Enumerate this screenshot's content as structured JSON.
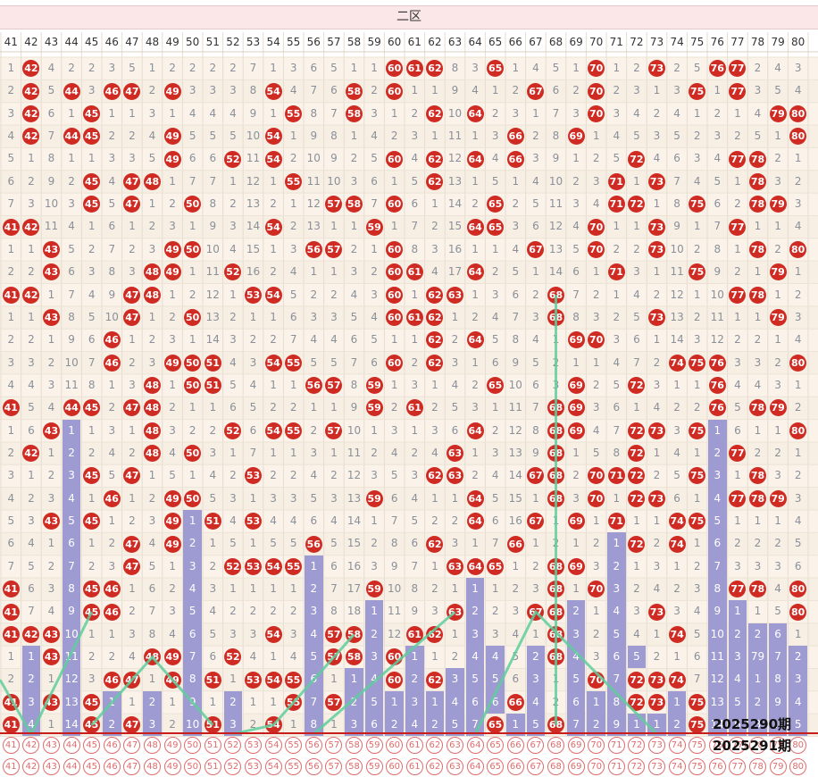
{
  "zone_label": "二区",
  "columns": [
    "41",
    "42",
    "43",
    "44",
    "45",
    "46",
    "47",
    "48",
    "49",
    "50",
    "51",
    "52",
    "53",
    "54",
    "55",
    "56",
    "57",
    "58",
    "59",
    "60",
    "61",
    "62",
    "63",
    "64",
    "65",
    "66",
    "67",
    "68",
    "69",
    "70",
    "71",
    "72",
    "73",
    "74",
    "75",
    "76",
    "77",
    "78",
    "79",
    "80"
  ],
  "rows": [
    "1,42,4,2,2,3,5,1,2,2,2,2,7,1,3,6,5,1,1,60,61,62,8,3,65,1,4,5,1,70,1,2,73,2,5,76,77,2,4,3",
    "2,42,5,44,3,46,47,2,49,3,3,3,8,54,4,7,6,58,2,60,1,1,9,4,1,2,67,6,2,70,2,3,1,3,75,1,77,3,5,4",
    "3,42,6,1,45,1,1,3,1,4,4,4,9,1,55,8,7,58,3,1,2,62,10,64,2,3,1,7,3,70,3,4,2,4,1,2,1,4,79,80",
    "4,42,7,44,45,2,2,4,49,5,5,5,10,54,1,9,8,1,4,2,3,1,11,1,3,66,2,8,69,1,4,5,3,5,2,3,2,5,1,80",
    "5,1,8,1,1,3,3,5,49,6,6,52,11,54,2,10,9,2,5,60,4,62,12,64,4,66,3,9,1,2,5,72,4,6,3,4,77,78,2,1",
    "6,2,9,2,45,4,47,48,1,7,7,1,12,1,55,11,10,3,6,1,5,62,13,1,5,1,4,10,2,3,71,1,73,7,4,5,1,78,3,2",
    "7,3,10,3,45,5,47,1,2,50,8,2,13,2,1,12,57,58,7,60,6,1,14,2,65,2,5,11,3,4,71,72,1,8,75,6,2,78,79,3",
    "41,42,11,4,1,6,1,2,3,1,9,3,14,54,2,13,1,1,59,1,7,2,15,64,65,3,6,12,4,70,1,1,73,9,1,7,77,1,1,4",
    "1,1,43,5,2,7,2,3,49,50,10,4,15,1,3,56,57,2,1,60,8,3,16,1,1,4,67,13,5,70,2,2,73,10,2,8,1,78,2,80",
    "2,2,43,6,3,8,3,48,49,1,11,52,16,2,4,1,1,3,2,60,61,4,17,64,2,5,1,14,6,1,71,3,1,11,75,9,2,1,79,1",
    "41,42,1,7,4,9,47,48,1,2,12,1,53,54,5,2,2,4,3,60,1,62,63,1,3,6,2,68,7,2,1,4,2,12,1,10,77,78,1,2",
    "1,1,43,8,5,10,47,1,2,50,13,2,1,1,6,3,3,5,4,60,61,62,1,2,4,7,3,68,8,3,2,5,73,13,2,11,1,1,79,3",
    "2,2,1,9,6,46,1,2,3,1,14,3,2,2,7,4,4,6,5,1,1,62,2,64,5,8,4,1,69,70,3,6,1,14,3,12,2,2,1,4",
    "3,3,2,10,7,46,2,3,49,50,51,4,3,54,55,5,5,7,6,60,2,62,3,1,6,9,5,2,1,1,4,7,2,74,75,76,3,3,2,80",
    "4,4,3,11,8,1,3,48,1,50,51,5,4,1,1,56,57,8,59,1,3,1,4,2,65,10,6,3,69,2,5,72,3,1,1,76,4,4,3,1",
    "41,5,4,44,45,2,47,48,2,1,1,6,5,2,2,1,1,9,59,2,61,2,5,3,1,11,7,68,69,3,6,1,4,2,2,76,5,78,79,2",
    "1,6,43,1,1,3,1,48,3,2,2,52,6,54,55,2,57,10,1,3,1,3,6,64,2,12,8,68,69,4,7,72,73,3,75,1,6,1,1,80",
    "2,42,1,2,2,4,2,48,4,50,3,1,7,1,1,3,1,11,2,4,2,4,63,1,3,13,9,68,1,5,8,72,1,4,1,2,77,2,2,1",
    "3,1,2,3,45,5,47,1,5,1,4,2,53,2,2,4,2,12,3,5,3,62,63,2,4,14,67,68,2,70,71,72,2,5,75,3,1,78,3,2",
    "4,2,3,4,1,46,1,2,49,50,5,3,1,3,3,5,3,13,59,6,4,1,1,64,5,15,1,68,3,70,1,72,73,6,1,4,77,78,79,3",
    "5,3,43,5,45,1,2,3,49,1,51,4,53,4,4,6,4,14,1,7,5,2,2,64,6,16,67,1,69,1,71,1,1,74,75,5,1,1,1,4",
    "6,4,1,6,1,2,47,4,49,2,1,5,1,5,5,56,5,15,2,8,6,62,3,1,7,66,1,2,1,2,1,72,2,74,1,6,2,2,2,5",
    "7,5,2,7,2,3,47,5,1,3,2,52,53,54,55,1,6,16,3,9,7,1,63,64,65,1,2,68,69,3,2,1,3,1,2,7,3,3,3,6",
    "41,6,3,8,45,46,1,6,2,4,3,1,1,1,1,2,7,17,59,10,8,2,1,1,1,2,3,68,1,70,3,2,4,2,3,8,77,78,4,80",
    "41,7,4,9,45,46,2,7,3,5,4,2,2,2,2,3,8,18,1,11,9,3,63,2,2,3,67,68,2,1,4,3,73,3,4,9,1,1,5,80",
    "41,42,43,10,1,1,3,8,4,6,5,3,3,54,3,4,57,58,2,12,61,62,1,3,3,4,1,68,3,2,5,4,1,74,5,10,2,2,6,1",
    "1,1,43,11,2,2,4,48,49,7,6,52,4,1,4,5,57,58,3,60,1,1,2,4,4,5,2,68,4,3,6,5,2,1,6,11,3,79,7,2",
    "2,2,1,12,3,46,47,1,49,8,51,1,53,54,55,6,1,1,4,60,2,62,3,5,5,6,3,1,5,70,7,72,73,74,7,12,4,1,8,3",
    "41,3,43,13,45,1,1,2,1,9,1,2,1,1,55,7,57,2,5,1,3,1,4,6,6,66,4,2,6,1,8,72,73,1,75,13,5,2,9,4",
    "41,4,1,14,45,2,47,3,2,10,51,3,2,54,1,8,1,3,6,2,4,2,5,7,65,1,5,68,7,2,9,1,1,2,75,14,6,3,10,5"
  ],
  "bars": {
    "41": [],
    "42": [
      [
        26,
        29
      ]
    ],
    "43": [],
    "44": [
      [
        16,
        29
      ]
    ],
    "45": [],
    "46": [
      [
        28,
        29
      ]
    ],
    "47": [],
    "48": [
      [
        28,
        29
      ]
    ],
    "49": [],
    "50": [
      [
        20,
        29
      ]
    ],
    "51": [],
    "52": [
      [
        28,
        29
      ]
    ],
    "53": [],
    "54": [],
    "55": [],
    "56": [
      [
        22,
        29
      ]
    ],
    "57": [],
    "58": [
      [
        26,
        29
      ]
    ],
    "59": [
      [
        24,
        29
      ]
    ],
    "60": [
      [
        28,
        29
      ]
    ],
    "61": [
      [
        26,
        29
      ]
    ],
    "62": [
      [
        27,
        29
      ]
    ],
    "63": [
      [
        27,
        29
      ]
    ],
    "64": [
      [
        23,
        29
      ]
    ],
    "65": [
      [
        26,
        29
      ]
    ],
    "66": [
      [
        28,
        29
      ]
    ],
    "67": [
      [
        26,
        29
      ]
    ],
    "68": [],
    "69": [
      [
        24,
        29
      ]
    ],
    "70": [
      [
        27,
        29
      ]
    ],
    "71": [
      [
        21,
        29
      ]
    ],
    "72": [
      [
        26,
        29
      ]
    ],
    "73": [
      [
        28,
        29
      ]
    ],
    "74": [
      [
        27,
        29
      ]
    ],
    "75": [
      [
        28,
        29
      ]
    ],
    "76": [
      [
        16,
        29
      ]
    ],
    "77": [
      [
        24,
        29
      ]
    ],
    "78": [
      [
        25,
        29
      ]
    ],
    "79": [
      [
        25,
        29
      ]
    ],
    "80": [
      [
        26,
        29
      ]
    ]
  },
  "draw_row": [
    "41",
    "42",
    "43",
    "44",
    "45",
    "46",
    "47",
    "48",
    "49",
    "50",
    "51",
    "52",
    "53",
    "54",
    "55",
    "56",
    "57",
    "58",
    "59",
    "60",
    "61",
    "62",
    "63",
    "64",
    "65",
    "66",
    "67",
    "68",
    "69",
    "70",
    "71",
    "72",
    "73",
    "74",
    "75",
    "76",
    "77",
    "78",
    "79",
    "80"
  ],
  "draw_row2": [
    "41",
    "42",
    "43",
    "44",
    "45",
    "46",
    "47",
    "48",
    "49",
    "50",
    "51",
    "52",
    "53",
    "54",
    "55",
    "56",
    "57",
    "58",
    "59",
    "60",
    "61",
    "62",
    "63",
    "64",
    "65",
    "66",
    "67",
    "68",
    "69",
    "70",
    "71",
    "72",
    "73",
    "74",
    "75",
    "76",
    "77",
    "78",
    "79",
    "80"
  ],
  "periods": [
    "2025290期",
    "2025291期"
  ],
  "colors": {
    "ball": "#cf2b23",
    "bar": "#9d9bd2",
    "line": "#5fce9c",
    "zone_bg": "#fbe7e7"
  }
}
